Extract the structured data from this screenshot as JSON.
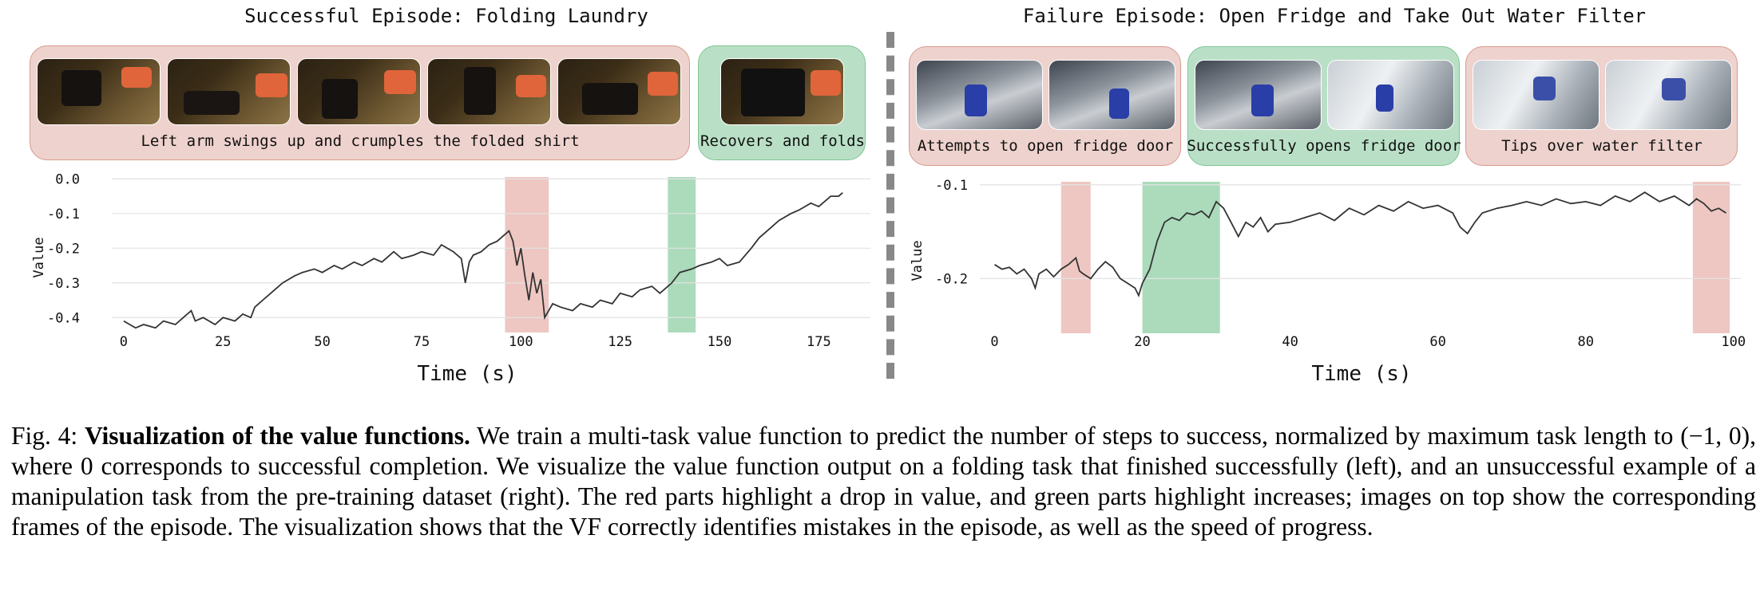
{
  "left_panel": {
    "title": "Successful Episode: Folding Laundry",
    "boxes": [
      {
        "label": "Left arm swings up and crumples the folded shirt",
        "color": "red",
        "frames": 5
      },
      {
        "label": "Recovers and folds",
        "color": "green",
        "frames": 1
      }
    ]
  },
  "right_panel": {
    "title": "Failure Episode: Open Fridge and Take Out Water Filter",
    "boxes": [
      {
        "label": "Attempts to open fridge door",
        "color": "red",
        "frames": 2
      },
      {
        "label": "Successfully opens fridge door",
        "color": "green",
        "frames": 2
      },
      {
        "label": "Tips over water filter",
        "color": "red",
        "frames": 2
      }
    ]
  },
  "chart_data": [
    {
      "type": "line",
      "title": "Successful Episode: Folding Laundry",
      "xlabel": "Time (s)",
      "ylabel": "Value",
      "xlim": [
        -3,
        188
      ],
      "ylim": [
        -0.45,
        0.01
      ],
      "xticks": [
        0,
        25,
        50,
        75,
        100,
        125,
        150,
        175
      ],
      "yticks": [
        0.0,
        -0.1,
        -0.2,
        -0.3,
        -0.4
      ],
      "ytick_labels": [
        "0.0",
        "-0.1",
        "-0.2",
        "-0.3",
        "-0.4"
      ],
      "grid": "horizontal",
      "highlights": [
        {
          "x0": 96,
          "x1": 107,
          "color": "red"
        },
        {
          "x0": 137,
          "x1": 144,
          "color": "green"
        }
      ],
      "series": [
        {
          "x": [
            0,
            3,
            5,
            8,
            10,
            13,
            15,
            17,
            18,
            20,
            23,
            25,
            28,
            30,
            32,
            33,
            35,
            37,
            40,
            43,
            45,
            48,
            50,
            53,
            55,
            58,
            60,
            63,
            65,
            68,
            70,
            73,
            75,
            78,
            80,
            83,
            85,
            86,
            87,
            88,
            90,
            92,
            94,
            96,
            97,
            98,
            99,
            100,
            101,
            102,
            103,
            104,
            105,
            106,
            107,
            108,
            110,
            113,
            115,
            118,
            120,
            123,
            125,
            128,
            130,
            133,
            135,
            138,
            140,
            143,
            145,
            148,
            150,
            152,
            155,
            158,
            160,
            163,
            165,
            168,
            170,
            173,
            175,
            178,
            180,
            181
          ],
          "values": [
            -0.41,
            -0.43,
            -0.42,
            -0.43,
            -0.41,
            -0.42,
            -0.4,
            -0.38,
            -0.41,
            -0.4,
            -0.42,
            -0.4,
            -0.41,
            -0.39,
            -0.4,
            -0.37,
            -0.35,
            -0.33,
            -0.3,
            -0.28,
            -0.27,
            -0.26,
            -0.27,
            -0.25,
            -0.26,
            -0.24,
            -0.25,
            -0.23,
            -0.24,
            -0.21,
            -0.23,
            -0.22,
            -0.21,
            -0.22,
            -0.19,
            -0.21,
            -0.23,
            -0.3,
            -0.24,
            -0.22,
            -0.21,
            -0.19,
            -0.18,
            -0.16,
            -0.15,
            -0.18,
            -0.25,
            -0.2,
            -0.28,
            -0.35,
            -0.27,
            -0.33,
            -0.29,
            -0.4,
            -0.38,
            -0.36,
            -0.37,
            -0.38,
            -0.36,
            -0.37,
            -0.35,
            -0.36,
            -0.33,
            -0.34,
            -0.32,
            -0.31,
            -0.33,
            -0.3,
            -0.27,
            -0.26,
            -0.25,
            -0.24,
            -0.23,
            -0.25,
            -0.24,
            -0.2,
            -0.17,
            -0.14,
            -0.12,
            -0.1,
            -0.09,
            -0.07,
            -0.08,
            -0.05,
            -0.05,
            -0.04
          ]
        }
      ]
    },
    {
      "type": "line",
      "title": "Failure Episode: Open Fridge and Take Out Water Filter",
      "xlabel": "Time (s)",
      "ylabel": "Value",
      "xlim": [
        -2,
        101
      ],
      "ylim": [
        -0.26,
        -0.09
      ],
      "xticks": [
        0,
        20,
        40,
        60,
        80,
        100
      ],
      "yticks": [
        -0.1,
        -0.2
      ],
      "ytick_labels": [
        "-0.1",
        "-0.2"
      ],
      "grid": "horizontal",
      "highlights": [
        {
          "x0": 9,
          "x1": 13,
          "color": "red"
        },
        {
          "x0": 20,
          "x1": 30.5,
          "color": "green"
        },
        {
          "x0": 94.5,
          "x1": 99.5,
          "color": "red"
        }
      ],
      "series": [
        {
          "x": [
            0,
            1,
            2,
            3,
            4,
            5,
            5.5,
            6,
            7,
            8,
            9,
            10,
            11,
            11.5,
            12,
            13,
            14,
            15,
            16,
            17,
            18,
            19,
            19.5,
            20,
            21,
            22,
            23,
            24,
            25,
            26,
            27,
            28,
            29,
            30,
            31,
            32,
            33,
            34,
            35,
            36,
            37,
            38,
            40,
            42,
            44,
            46,
            48,
            50,
            52,
            54,
            56,
            58,
            60,
            62,
            63,
            64,
            65,
            66,
            68,
            70,
            72,
            74,
            76,
            78,
            80,
            82,
            84,
            86,
            88,
            90,
            92,
            94,
            95,
            96,
            97,
            98,
            99
          ],
          "values": [
            -0.185,
            -0.19,
            -0.188,
            -0.195,
            -0.19,
            -0.2,
            -0.21,
            -0.195,
            -0.19,
            -0.198,
            -0.19,
            -0.185,
            -0.178,
            -0.192,
            -0.195,
            -0.2,
            -0.19,
            -0.182,
            -0.188,
            -0.2,
            -0.205,
            -0.21,
            -0.218,
            -0.205,
            -0.19,
            -0.16,
            -0.14,
            -0.135,
            -0.138,
            -0.13,
            -0.132,
            -0.128,
            -0.135,
            -0.118,
            -0.125,
            -0.14,
            -0.155,
            -0.14,
            -0.145,
            -0.135,
            -0.15,
            -0.142,
            -0.14,
            -0.135,
            -0.13,
            -0.138,
            -0.125,
            -0.132,
            -0.122,
            -0.128,
            -0.118,
            -0.125,
            -0.122,
            -0.13,
            -0.145,
            -0.152,
            -0.14,
            -0.13,
            -0.125,
            -0.122,
            -0.118,
            -0.122,
            -0.115,
            -0.12,
            -0.118,
            -0.122,
            -0.112,
            -0.118,
            -0.108,
            -0.118,
            -0.112,
            -0.122,
            -0.115,
            -0.12,
            -0.128,
            -0.125,
            -0.13
          ]
        }
      ]
    }
  ],
  "caption": {
    "prefix": "Fig. 4: ",
    "bold": "Visualization of the value functions.",
    "body": " We train a multi-task value function to predict the number of steps to success, normalized by maximum task length to (−1, 0), where 0 corresponds to successful completion. We visualize the value function output on a folding task that finished successfully (left), and an unsuccessful example of a manipulation task from the pre-training dataset (right). The red parts highlight a drop in value, and green parts highlight increases; images on top show the corresponding frames of the episode. The visualization shows that the VF correctly identifies mistakes in the episode, as well as the speed of progress."
  },
  "colors": {
    "red_band": "#e8b4ad",
    "green_band": "#8fcfa4",
    "line": "#333333",
    "grid": "#e3e3e3"
  }
}
